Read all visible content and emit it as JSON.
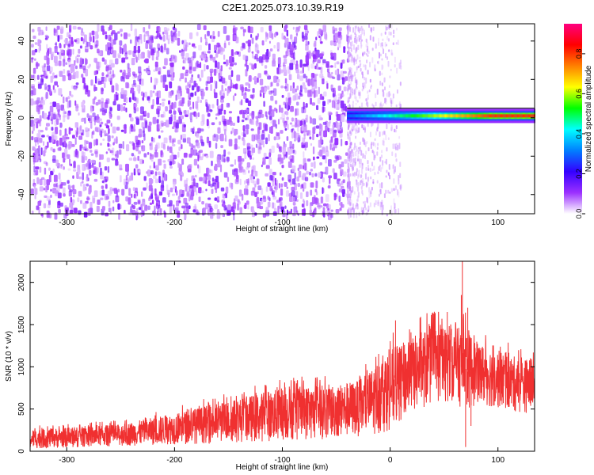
{
  "figure": {
    "title": "C2E1.2025.073.10.39.R19"
  },
  "chart_data": [
    {
      "type": "heatmap",
      "title": "C2E1.2025.073.10.39.R19",
      "xlabel": "Height of straight line (km)",
      "ylabel": "Frequency (Hz)",
      "xlim": [
        -334,
        134
      ],
      "ylim": [
        -50,
        49
      ],
      "xticks": [
        -300,
        -200,
        -100,
        0,
        100
      ],
      "yticks": [
        -40,
        -20,
        0,
        20,
        40
      ],
      "colorbar": {
        "label": "Normalized spectral amplitude",
        "range": [
          0,
          0.95
        ],
        "ticks": [
          0.0,
          0.2,
          0.4,
          0.6,
          0.8
        ],
        "colormap": [
          "#ffffff",
          "#9b30ff",
          "#3300ff",
          "#0080ff",
          "#00ffff",
          "#00ff00",
          "#ffff00",
          "#ff8000",
          "#ff0000",
          "#ff0080"
        ]
      },
      "regions": [
        {
          "name": "noise",
          "x": [
            -334,
            -40
          ],
          "y": [
            -50,
            49
          ],
          "amplitude": 0.1
        },
        {
          "name": "fade",
          "x": [
            -40,
            10
          ],
          "y": [
            -50,
            49
          ],
          "amplitude": 0.05
        },
        {
          "name": "trace",
          "x": [
            -40,
            134
          ],
          "y_center": 1,
          "amplitude_start": 0.3,
          "amplitude_end": 0.85
        }
      ],
      "trace_line_y": 5
    },
    {
      "type": "line",
      "xlabel": "Height of straight line (km)",
      "ylabel": "SNR (10 * v/v)",
      "xlim": [
        -334,
        134
      ],
      "ylim": [
        0,
        2250
      ],
      "xticks": [
        -300,
        -200,
        -100,
        0,
        100
      ],
      "yticks": [
        0,
        500,
        1000,
        1500,
        2000
      ],
      "series": [
        {
          "color": "#f03030",
          "envelope": {
            "x": [
              -334,
              -300,
              -250,
              -200,
              -150,
              -100,
              -50,
              -25,
              -10,
              0,
              20,
              40,
              60,
              70,
              80,
              100,
              120,
              134
            ],
            "upper": [
              260,
              280,
              320,
              450,
              600,
              750,
              800,
              850,
              1100,
              1200,
              1350,
              1500,
              1450,
              1500,
              1300,
              1200,
              1100,
              1100
            ],
            "lower": [
              30,
              40,
              60,
              80,
              100,
              120,
              150,
              180,
              200,
              250,
              450,
              550,
              600,
              450,
              550,
              500,
              450,
              450
            ]
          },
          "spikes": [
            {
              "x": 67,
              "y": 2250
            },
            {
              "x": 66,
              "y": 1850
            },
            {
              "x": 72,
              "y": 1700
            },
            {
              "x": 53,
              "y": 1650
            },
            {
              "x": 5,
              "y": 1550
            },
            {
              "x": 70,
              "y": 50
            },
            {
              "x": 75,
              "y": 300
            }
          ]
        }
      ]
    }
  ]
}
